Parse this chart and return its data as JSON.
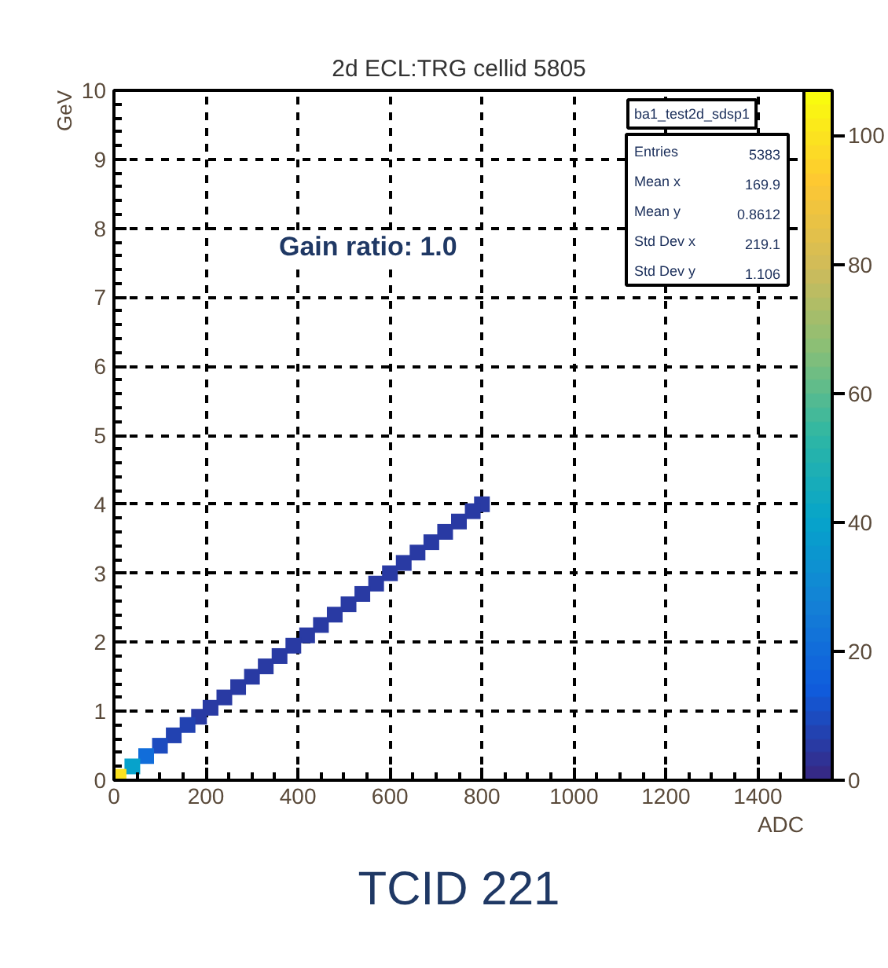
{
  "chart_data": {
    "type": "scatter",
    "title": "2d ECL:TRG cellid 5805",
    "xlabel": "ADC",
    "ylabel": "GeV",
    "x": [
      10,
      40,
      70,
      100,
      130,
      160,
      185,
      210,
      240,
      270,
      300,
      330,
      360,
      390,
      420,
      450,
      480,
      510,
      540,
      570,
      600,
      630,
      660,
      690,
      720,
      750,
      780,
      800
    ],
    "values": [
      0.05,
      0.2,
      0.35,
      0.5,
      0.65,
      0.8,
      0.92,
      1.05,
      1.2,
      1.35,
      1.5,
      1.65,
      1.8,
      1.95,
      2.1,
      2.25,
      2.4,
      2.55,
      2.7,
      2.85,
      3.0,
      3.15,
      3.3,
      3.45,
      3.6,
      3.75,
      3.9,
      4.0
    ],
    "cvalues": [
      100,
      40,
      20,
      10,
      8,
      7,
      6,
      6,
      6,
      6,
      6,
      5,
      5,
      5,
      5,
      5,
      5,
      5,
      5,
      5,
      5,
      5,
      5,
      5,
      5,
      5,
      5,
      5
    ],
    "clim": [
      0,
      107
    ],
    "cticks": [
      0,
      20,
      40,
      60,
      80,
      100
    ],
    "xlim": [
      0,
      1500
    ],
    "xticks": [
      0,
      200,
      400,
      600,
      800,
      1000,
      1200,
      1400
    ],
    "ylim": [
      0,
      10
    ],
    "yticks": [
      0,
      1,
      2,
      3,
      4,
      5,
      6,
      7,
      8,
      9,
      10
    ],
    "grid": true,
    "marker": "square",
    "annotations": [
      "ba1_test2d_sdsp1",
      "Entries 5383",
      "Mean x 169.9",
      "Mean y 0.8612",
      "Std Dev x 219.1",
      "Std Dev y 1.106",
      "Gain ratio: 1.0",
      "TCID 221"
    ]
  }
}
